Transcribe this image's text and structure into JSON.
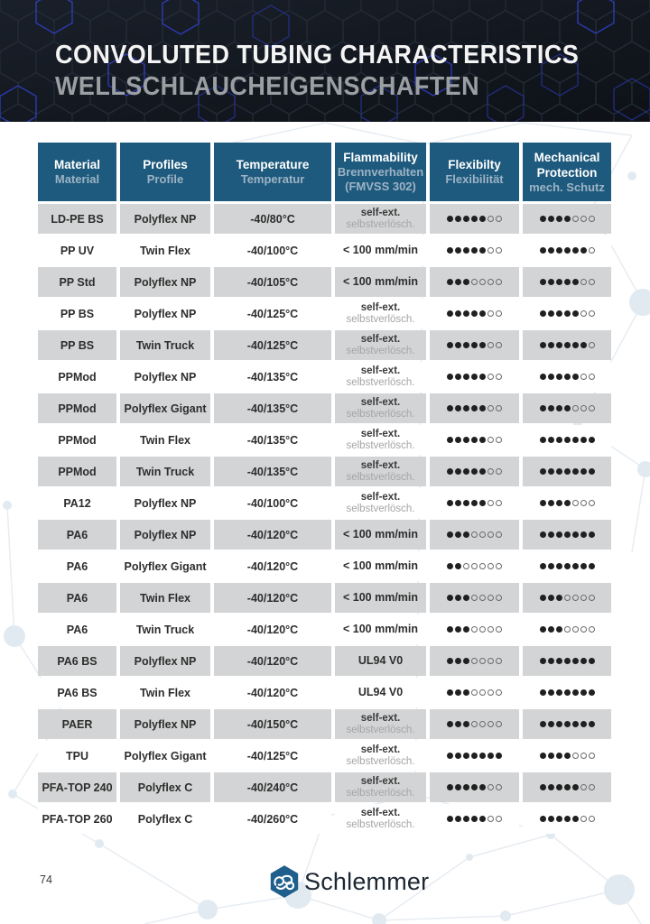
{
  "header": {
    "title_en": "CONVOLUTED TUBING CHARACTERISTICS",
    "title_de": "WELLSCHLAUCHEIGENSCHAFTEN"
  },
  "table": {
    "columns": [
      {
        "en": "Material",
        "de": "Material"
      },
      {
        "en": "Profiles",
        "de": "Profile"
      },
      {
        "en": "Temperature",
        "de": "Temperatur"
      },
      {
        "en": "Flammability",
        "de": "Brennverhalten\n(FMVSS 302)"
      },
      {
        "en": "Flexibilty",
        "de": "Flexibilität"
      },
      {
        "en": "Mechanical\nProtection",
        "de": "mech. Schutz"
      }
    ],
    "rating_max": 7,
    "rows": [
      {
        "material": "LD-PE BS",
        "profile": "Polyflex NP",
        "temperature": "-40/80°C",
        "flammability": [
          "self-ext.",
          "selbstverlösch."
        ],
        "flexibility": 5,
        "mechanical_protection": 4
      },
      {
        "material": "PP UV",
        "profile": "Twin Flex",
        "temperature": "-40/100°C",
        "flammability": [
          "< 100 mm/min"
        ],
        "flexibility": 5,
        "mechanical_protection": 6
      },
      {
        "material": "PP Std",
        "profile": "Polyflex NP",
        "temperature": "-40/105°C",
        "flammability": [
          "< 100 mm/min"
        ],
        "flexibility": 3,
        "mechanical_protection": 5
      },
      {
        "material": "PP BS",
        "profile": "Polyflex NP",
        "temperature": "-40/125°C",
        "flammability": [
          "self-ext.",
          "selbstverlösch."
        ],
        "flexibility": 5,
        "mechanical_protection": 5
      },
      {
        "material": "PP BS",
        "profile": "Twin Truck",
        "temperature": "-40/125°C",
        "flammability": [
          "self-ext.",
          "selbstverlösch."
        ],
        "flexibility": 5,
        "mechanical_protection": 6
      },
      {
        "material": "PPMod",
        "profile": "Polyflex NP",
        "temperature": "-40/135°C",
        "flammability": [
          "self-ext.",
          "selbstverlösch."
        ],
        "flexibility": 5,
        "mechanical_protection": 5
      },
      {
        "material": "PPMod",
        "profile": "Polyflex Gigant",
        "temperature": "-40/135°C",
        "flammability": [
          "self-ext.",
          "selbstverlösch."
        ],
        "flexibility": 5,
        "mechanical_protection": 4
      },
      {
        "material": "PPMod",
        "profile": "Twin Flex",
        "temperature": "-40/135°C",
        "flammability": [
          "self-ext.",
          "selbstverlösch."
        ],
        "flexibility": 5,
        "mechanical_protection": 7
      },
      {
        "material": "PPMod",
        "profile": "Twin Truck",
        "temperature": "-40/135°C",
        "flammability": [
          "self-ext.",
          "selbstverlösch."
        ],
        "flexibility": 5,
        "mechanical_protection": 7
      },
      {
        "material": "PA12",
        "profile": "Polyflex NP",
        "temperature": "-40/100°C",
        "flammability": [
          "self-ext.",
          "selbstverlösch."
        ],
        "flexibility": 5,
        "mechanical_protection": 4
      },
      {
        "material": "PA6",
        "profile": "Polyflex NP",
        "temperature": "-40/120°C",
        "flammability": [
          "< 100 mm/min"
        ],
        "flexibility": 3,
        "mechanical_protection": 7
      },
      {
        "material": "PA6",
        "profile": "Polyflex Gigant",
        "temperature": "-40/120°C",
        "flammability": [
          "< 100 mm/min"
        ],
        "flexibility": 2,
        "mechanical_protection": 7
      },
      {
        "material": "PA6",
        "profile": "Twin Flex",
        "temperature": "-40/120°C",
        "flammability": [
          "< 100 mm/min"
        ],
        "flexibility": 3,
        "mechanical_protection": 3
      },
      {
        "material": "PA6",
        "profile": "Twin Truck",
        "temperature": "-40/120°C",
        "flammability": [
          "< 100 mm/min"
        ],
        "flexibility": 3,
        "mechanical_protection": 3
      },
      {
        "material": "PA6 BS",
        "profile": "Polyflex NP",
        "temperature": "-40/120°C",
        "flammability": [
          "UL94 V0"
        ],
        "flexibility": 3,
        "mechanical_protection": 7
      },
      {
        "material": "PA6 BS",
        "profile": "Twin Flex",
        "temperature": "-40/120°C",
        "flammability": [
          "UL94 V0"
        ],
        "flexibility": 3,
        "mechanical_protection": 7
      },
      {
        "material": "PAER",
        "profile": "Polyflex NP",
        "temperature": "-40/150°C",
        "flammability": [
          "self-ext.",
          "selbstverlösch."
        ],
        "flexibility": 3,
        "mechanical_protection": 7
      },
      {
        "material": "TPU",
        "profile": "Polyflex Gigant",
        "temperature": "-40/125°C",
        "flammability": [
          "self-ext.",
          "selbstverlösch."
        ],
        "flexibility": 7,
        "mechanical_protection": 4
      },
      {
        "material": "PFA-TOP 240",
        "profile": "Polyflex C",
        "temperature": "-40/240°C",
        "flammability": [
          "self-ext.",
          "selbstverlösch."
        ],
        "flexibility": 5,
        "mechanical_protection": 5
      },
      {
        "material": "PFA-TOP 260",
        "profile": "Polyflex C",
        "temperature": "-40/260°C",
        "flammability": [
          "self-ext.",
          "selbstverlösch."
        ],
        "flexibility": 5,
        "mechanical_protection": 5
      }
    ]
  },
  "footer": {
    "page_number": "74",
    "brand": "Schlemmer"
  },
  "icons": {
    "brand_mark": "hexagon-tubes-icon",
    "rating": "dot-rating-icon"
  },
  "colors": {
    "header_blue": "#1e5a7d",
    "header_de_text": "#9db3c5",
    "row_gray": "#d3d4d5",
    "text_dark": "#2d2d2d",
    "text_gray": "#a5a5a5",
    "dot": "#202020",
    "subtitle_gray": "#9b9fa4",
    "hex_blue": "#3546e0",
    "logo_blue": "#1e5f8d",
    "logo_text": "#1c2733",
    "network": "#e6ecf2"
  }
}
